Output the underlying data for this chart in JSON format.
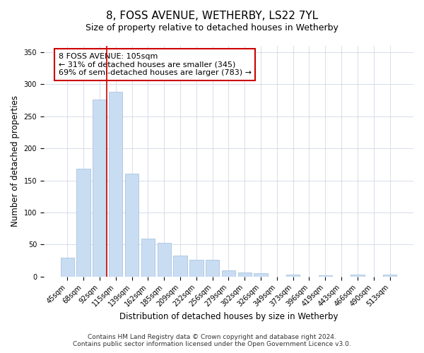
{
  "title": "8, FOSS AVENUE, WETHERBY, LS22 7YL",
  "subtitle": "Size of property relative to detached houses in Wetherby",
  "xlabel": "Distribution of detached houses by size in Wetherby",
  "ylabel": "Number of detached properties",
  "bar_labels": [
    "45sqm",
    "68sqm",
    "92sqm",
    "115sqm",
    "139sqm",
    "162sqm",
    "185sqm",
    "209sqm",
    "232sqm",
    "256sqm",
    "279sqm",
    "302sqm",
    "326sqm",
    "349sqm",
    "373sqm",
    "396sqm",
    "419sqm",
    "443sqm",
    "466sqm",
    "490sqm",
    "513sqm"
  ],
  "bar_values": [
    29,
    168,
    276,
    288,
    161,
    59,
    53,
    33,
    26,
    26,
    10,
    6,
    5,
    0,
    3,
    0,
    2,
    0,
    3,
    0,
    3
  ],
  "bar_color": "#c9ddf2",
  "bar_edge_color": "#a8c4e0",
  "vline_color": "#cc0000",
  "annotation_text": "8 FOSS AVENUE: 105sqm\n← 31% of detached houses are smaller (345)\n69% of semi-detached houses are larger (783) →",
  "annotation_box_color": "#ffffff",
  "annotation_box_edge": "#cc0000",
  "ylim": [
    0,
    360
  ],
  "yticks": [
    0,
    50,
    100,
    150,
    200,
    250,
    300,
    350
  ],
  "footer1": "Contains HM Land Registry data © Crown copyright and database right 2024.",
  "footer2": "Contains public sector information licensed under the Open Government Licence v3.0.",
  "background_color": "#ffffff",
  "plot_bg_color": "#ffffff",
  "title_fontsize": 11,
  "subtitle_fontsize": 9,
  "axis_label_fontsize": 8.5,
  "tick_fontsize": 7,
  "annotation_fontsize": 8,
  "footer_fontsize": 6.5
}
